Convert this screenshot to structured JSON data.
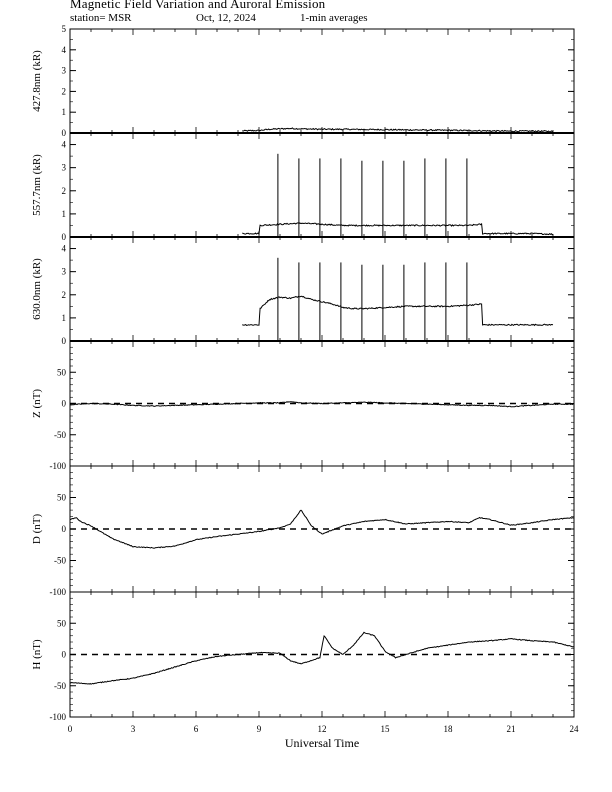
{
  "header": {
    "title": "Magnetic Field Variation and Auroral Emission",
    "station": "station= MSR",
    "date": "Oct, 12, 2024",
    "averaging": "1-min averages"
  },
  "chart_data": [
    {
      "type": "line",
      "ylabel": "427.8nm (kR)",
      "xlabel": "",
      "xlim": [
        0,
        24
      ],
      "ylim": [
        0,
        5
      ],
      "yticks": [
        0,
        1,
        2,
        3,
        4,
        5
      ],
      "series": [
        {
          "x": [
            8.2,
            9,
            9.5,
            10,
            10.5,
            11,
            12,
            13,
            14,
            15,
            16,
            17,
            18,
            19,
            20,
            21,
            22,
            23
          ],
          "values": [
            0.1,
            0.12,
            0.18,
            0.2,
            0.22,
            0.2,
            0.18,
            0.18,
            0.17,
            0.16,
            0.15,
            0.14,
            0.13,
            0.12,
            0.1,
            0.09,
            0.09,
            0.08
          ]
        }
      ]
    },
    {
      "type": "line",
      "ylabel": "557.7nm (kR)",
      "xlabel": "",
      "xlim": [
        0,
        24
      ],
      "ylim": [
        0,
        4.5
      ],
      "yticks": [
        0,
        1,
        2,
        3,
        4
      ],
      "series": [
        {
          "x": [
            8.2,
            9.0,
            9.05,
            10,
            11,
            12,
            13,
            14,
            15,
            16,
            17,
            18,
            19,
            19.6,
            19.65,
            20,
            21,
            22,
            23
          ],
          "values": [
            0.15,
            0.15,
            0.5,
            0.55,
            0.6,
            0.55,
            0.5,
            0.5,
            0.5,
            0.5,
            0.5,
            0.5,
            0.5,
            0.55,
            0.15,
            0.15,
            0.15,
            0.15,
            0.12
          ]
        }
      ],
      "spikes": {
        "x": [
          9.9,
          10.9,
          11.9,
          12.9,
          13.9,
          14.9,
          15.9,
          16.9,
          17.9,
          18.9
        ],
        "values": [
          3.6,
          3.4,
          3.4,
          3.4,
          3.3,
          3.3,
          3.3,
          3.4,
          3.4,
          3.4
        ]
      }
    },
    {
      "type": "line",
      "ylabel": "630.0nm (kR)",
      "xlabel": "",
      "xlim": [
        0,
        24
      ],
      "ylim": [
        0,
        4.5
      ],
      "yticks": [
        0,
        1,
        2,
        3,
        4
      ],
      "series": [
        {
          "x": [
            8.2,
            9.0,
            9.05,
            9.5,
            10,
            10.5,
            11,
            11.5,
            12,
            12.5,
            13,
            13.5,
            14,
            15,
            16,
            17,
            18,
            19,
            19.6,
            19.65,
            20,
            21,
            22,
            23
          ],
          "values": [
            0.7,
            0.7,
            1.4,
            1.8,
            1.9,
            1.85,
            1.95,
            1.8,
            1.7,
            1.6,
            1.45,
            1.4,
            1.4,
            1.45,
            1.5,
            1.5,
            1.5,
            1.55,
            1.6,
            0.7,
            0.7,
            0.7,
            0.7,
            0.7
          ]
        }
      ],
      "spikes": {
        "x": [
          9.9,
          10.9,
          11.9,
          12.9,
          13.9,
          14.9,
          15.9,
          16.9,
          17.9,
          18.9
        ],
        "values": [
          3.6,
          3.4,
          3.4,
          3.4,
          3.3,
          3.3,
          3.3,
          3.4,
          3.4,
          3.4
        ]
      }
    },
    {
      "type": "line",
      "ylabel": "Z (nT)",
      "xlabel": "",
      "xlim": [
        0,
        24
      ],
      "ylim": [
        -100,
        100
      ],
      "yticks": [
        -100,
        -50,
        0,
        50
      ],
      "zero_line": "dashed",
      "series": [
        {
          "x": [
            0,
            1,
            2,
            3,
            4,
            5,
            6,
            7,
            8,
            9,
            10,
            10.5,
            11,
            12,
            13,
            14,
            15,
            16,
            17,
            18,
            19,
            20,
            21,
            22,
            23,
            24
          ],
          "values": [
            -2,
            0,
            -1,
            -3,
            -4,
            -3,
            -2,
            -1,
            0,
            1,
            1,
            3,
            1,
            0,
            1,
            2,
            1,
            0,
            -1,
            -2,
            -3,
            -3,
            -5,
            -3,
            -1,
            -1
          ]
        }
      ]
    },
    {
      "type": "line",
      "ylabel": "D (nT)",
      "xlabel": "",
      "xlim": [
        0,
        24
      ],
      "ylim": [
        -100,
        100
      ],
      "yticks": [
        -100,
        -50,
        0,
        50
      ],
      "zero_line": "dashed",
      "series": [
        {
          "x": [
            0,
            0.3,
            0.5,
            1,
            1.5,
            2,
            3,
            4,
            5,
            6,
            7,
            8,
            9,
            10,
            10.5,
            11,
            11.5,
            12,
            13,
            14,
            15,
            16,
            17,
            18,
            19,
            19.5,
            20,
            21,
            22,
            23,
            24
          ],
          "values": [
            15,
            18,
            12,
            5,
            -5,
            -15,
            -28,
            -30,
            -27,
            -17,
            -12,
            -8,
            -4,
            2,
            8,
            30,
            5,
            -8,
            5,
            12,
            15,
            8,
            10,
            12,
            10,
            18,
            15,
            6,
            10,
            15,
            18
          ]
        }
      ]
    },
    {
      "type": "line",
      "ylabel": "H (nT)",
      "xlabel": "Universal Time",
      "xlim": [
        0,
        24
      ],
      "ylim": [
        -100,
        100
      ],
      "yticks": [
        -100,
        -50,
        0,
        50
      ],
      "xticks": [
        0,
        3,
        6,
        9,
        12,
        15,
        18,
        21,
        24
      ],
      "zero_line": "dashed",
      "series": [
        {
          "x": [
            0,
            1,
            2,
            3,
            4,
            5,
            6,
            7,
            8,
            9,
            10,
            10.5,
            11,
            11.9,
            12.1,
            12.5,
            13,
            13.5,
            14,
            14.5,
            15,
            15.5,
            16,
            17,
            18,
            19,
            20,
            21,
            22,
            23,
            24
          ],
          "values": [
            -45,
            -47,
            -42,
            -38,
            -30,
            -20,
            -10,
            -3,
            0,
            3,
            2,
            -10,
            -15,
            -5,
            30,
            10,
            0,
            15,
            35,
            30,
            5,
            -5,
            0,
            10,
            15,
            20,
            22,
            25,
            22,
            20,
            12
          ]
        }
      ]
    }
  ]
}
